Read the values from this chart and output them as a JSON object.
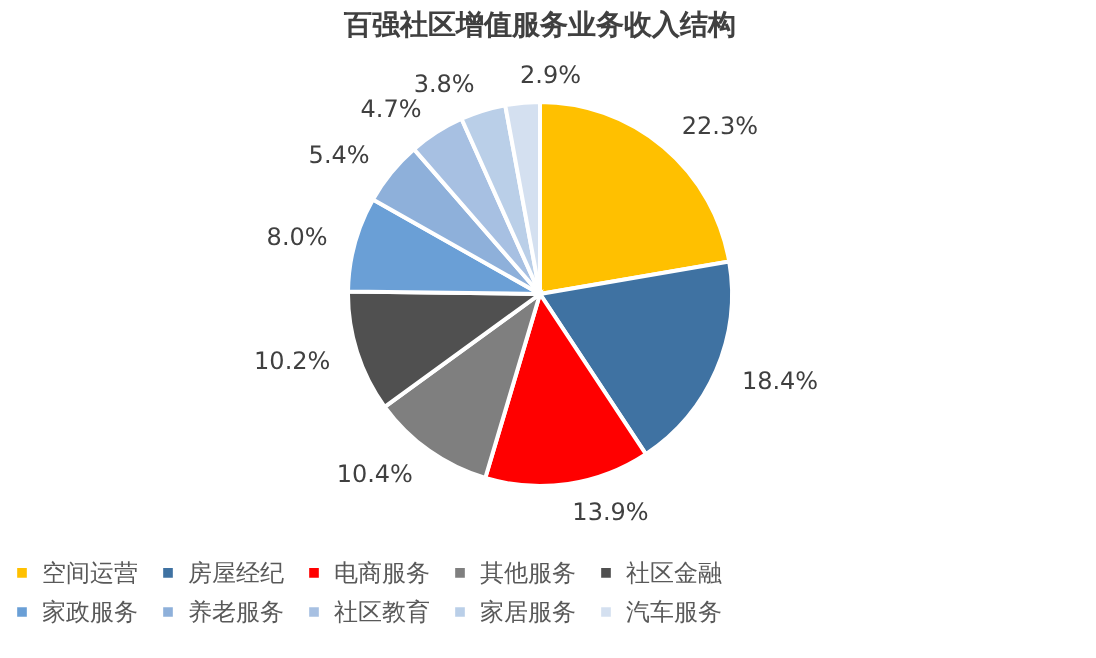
{
  "chart_data": {
    "type": "pie",
    "title": "百强社区增值服务业务收入结构",
    "categories": [
      "空间运营",
      "房屋经纪",
      "电商服务",
      "其他服务",
      "社区金融",
      "家政服务",
      "养老服务",
      "社区教育",
      "家居服务",
      "汽车服务"
    ],
    "values": [
      22.3,
      18.4,
      13.9,
      10.4,
      10.2,
      8.0,
      5.4,
      4.7,
      3.8,
      2.9
    ],
    "value_labels": [
      "22.3%",
      "18.4%",
      "13.9%",
      "10.4%",
      "10.2%",
      "8.0%",
      "5.4%",
      "4.7%",
      "3.8%",
      "2.9%"
    ],
    "colors": [
      "#ffc000",
      "#3f72a2",
      "#ff0000",
      "#7f7f7f",
      "#505050",
      "#6a9fd6",
      "#8eb0da",
      "#a7c0e2",
      "#bacfe8",
      "#d4e0f0"
    ],
    "legend": "bottom"
  }
}
